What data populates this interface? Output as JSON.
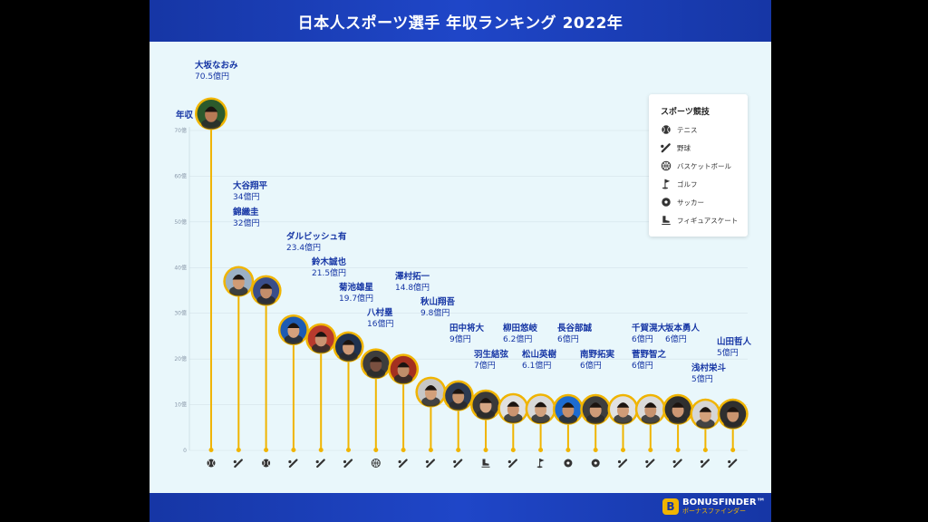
{
  "title": "日本人スポーツ選手 年収ランキング 2022年",
  "brand": {
    "name": "BONUSFINDER™",
    "kana": "ボーナスファインダー",
    "logo_letter": "B"
  },
  "legend": {
    "title": "スポーツ競技",
    "items": [
      {
        "sport": "tennis",
        "label": "テニス",
        "icon": "tennis-ball-icon"
      },
      {
        "sport": "baseball",
        "label": "野球",
        "icon": "baseball-bat-icon"
      },
      {
        "sport": "basketball",
        "label": "バスケットボール",
        "icon": "basketball-icon"
      },
      {
        "sport": "golf",
        "label": "ゴルフ",
        "icon": "golf-flag-icon"
      },
      {
        "sport": "soccer",
        "label": "サッカー",
        "icon": "soccer-ball-icon"
      },
      {
        "sport": "figure_skating",
        "label": "フィギュアスケート",
        "icon": "skate-boot-icon"
      }
    ]
  },
  "colors": {
    "accent": "#f0b400",
    "title_bar": "#1c3fb8",
    "label": "#1636a5",
    "background": "#e9f7fb"
  },
  "chart_data": {
    "type": "lollipop",
    "title": "日本人スポーツ選手 年収ランキング 2022年",
    "ylabel": "年収",
    "ylim": [
      0,
      70
    ],
    "yticks": [
      "0",
      "10億",
      "20億",
      "30億",
      "40億",
      "50億",
      "60億",
      "70億"
    ],
    "grid": true,
    "legend_position": "top-right",
    "series": [
      {
        "name": "大坂なおみ",
        "value": 70.5,
        "value_label": "70.5億円",
        "sport": "tennis"
      },
      {
        "name": "大谷翔平",
        "value": 34,
        "value_label": "34億円",
        "sport": "baseball"
      },
      {
        "name": "錦織圭",
        "value": 32,
        "value_label": "32億円",
        "sport": "tennis"
      },
      {
        "name": "ダルビッシュ有",
        "value": 23.4,
        "value_label": "23.4億円",
        "sport": "baseball"
      },
      {
        "name": "鈴木誠也",
        "value": 21.5,
        "value_label": "21.5億円",
        "sport": "baseball"
      },
      {
        "name": "菊池雄星",
        "value": 19.7,
        "value_label": "19.7億円",
        "sport": "baseball"
      },
      {
        "name": "八村塁",
        "value": 16,
        "value_label": "16億円",
        "sport": "basketball"
      },
      {
        "name": "澤村拓一",
        "value": 14.8,
        "value_label": "14.8億円",
        "sport": "baseball"
      },
      {
        "name": "秋山翔吾",
        "value": 9.8,
        "value_label": "9.8億円",
        "sport": "baseball"
      },
      {
        "name": "田中将大",
        "value": 9,
        "value_label": "9億円",
        "sport": "baseball"
      },
      {
        "name": "羽生結弦",
        "value": 7,
        "value_label": "7億円",
        "sport": "figure_skating"
      },
      {
        "name": "柳田悠岐",
        "value": 6.2,
        "value_label": "6.2億円",
        "sport": "baseball"
      },
      {
        "name": "松山英樹",
        "value": 6.1,
        "value_label": "6.1億円",
        "sport": "golf"
      },
      {
        "name": "長谷部誠",
        "value": 6,
        "value_label": "6億円",
        "sport": "soccer"
      },
      {
        "name": "南野拓実",
        "value": 6,
        "value_label": "6億円",
        "sport": "soccer"
      },
      {
        "name": "千賀滉大",
        "value": 6,
        "value_label": "6億円",
        "sport": "baseball"
      },
      {
        "name": "菅野智之",
        "value": 6,
        "value_label": "6億円",
        "sport": "baseball"
      },
      {
        "name": "坂本勇人",
        "value": 6,
        "value_label": "6億円",
        "sport": "baseball"
      },
      {
        "name": "浅村栄斗",
        "value": 5,
        "value_label": "5億円",
        "sport": "baseball"
      },
      {
        "name": "山田哲人",
        "value": 5,
        "value_label": "5億円",
        "sport": "baseball"
      }
    ]
  }
}
